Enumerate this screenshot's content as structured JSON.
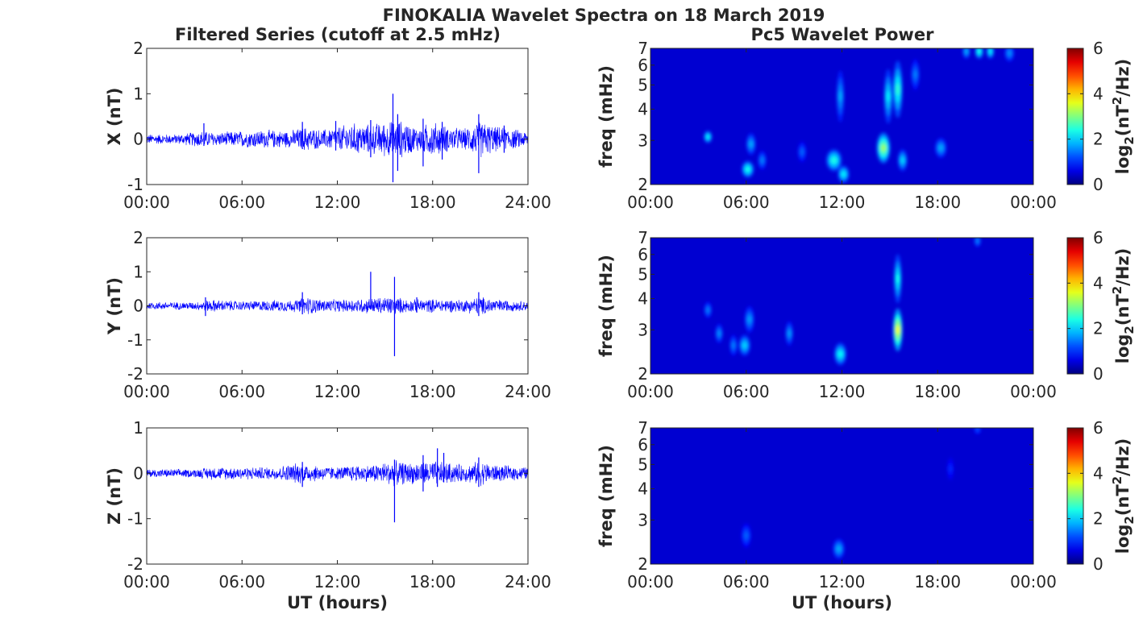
{
  "chart_data": {
    "title": "FINOKALIA Wavelet Spectra on 18 March 2019",
    "left_column_title": "Filtered Series (cutoff at 2.5 mHz)",
    "right_column_title": "Pc5 Wavelet Power",
    "colors": {
      "trace": "#0000ff",
      "axis": "#262626",
      "colormap": "jet"
    },
    "time_series": [
      {
        "type": "line",
        "component": "X",
        "ylabel": "X (nT)",
        "ylim": [
          -1,
          2
        ],
        "yticks": [
          "-1",
          "0",
          "1",
          "2"
        ],
        "xlim": [
          0,
          24
        ],
        "xticks": [
          "00:00",
          "06:00",
          "12:00",
          "18:00",
          "24:00"
        ],
        "envelope": [
          [
            0,
            0.12
          ],
          [
            2,
            0.12
          ],
          [
            3.5,
            0.2
          ],
          [
            4.5,
            0.16
          ],
          [
            6,
            0.2
          ],
          [
            7.5,
            0.22
          ],
          [
            9,
            0.2
          ],
          [
            10,
            0.3
          ],
          [
            11,
            0.22
          ],
          [
            12,
            0.3
          ],
          [
            13,
            0.38
          ],
          [
            14,
            0.35
          ],
          [
            15,
            0.42
          ],
          [
            16,
            0.45
          ],
          [
            17,
            0.3
          ],
          [
            18,
            0.42
          ],
          [
            19,
            0.3
          ],
          [
            20,
            0.25
          ],
          [
            21,
            0.45
          ],
          [
            22,
            0.3
          ],
          [
            23,
            0.25
          ],
          [
            24,
            0.18
          ]
        ],
        "spikes": [
          {
            "t": 3.6,
            "ymin": -0.15,
            "ymax": 0.35
          },
          {
            "t": 9.8,
            "ymin": -0.22,
            "ymax": 0.38
          },
          {
            "t": 11.9,
            "ymin": -0.25,
            "ymax": 0.4
          },
          {
            "t": 14.1,
            "ymin": -0.4,
            "ymax": 0.42
          },
          {
            "t": 15.5,
            "ymin": -0.95,
            "ymax": 1.0
          },
          {
            "t": 15.8,
            "ymin": -0.7,
            "ymax": 0.55
          },
          {
            "t": 17.4,
            "ymin": -0.6,
            "ymax": 0.45
          },
          {
            "t": 18.6,
            "ymin": -0.45,
            "ymax": 0.38
          },
          {
            "t": 20.9,
            "ymin": -0.75,
            "ymax": 0.55
          },
          {
            "t": 22.5,
            "ymin": -0.3,
            "ymax": 0.3
          }
        ]
      },
      {
        "type": "line",
        "component": "Y",
        "ylabel": "Y (nT)",
        "ylim": [
          -2,
          2
        ],
        "yticks": [
          "-2",
          "-1",
          "0",
          "1",
          "2"
        ],
        "xlim": [
          0,
          24
        ],
        "xticks": [
          "00:00",
          "06:00",
          "12:00",
          "18:00",
          "24:00"
        ],
        "envelope": [
          [
            0,
            0.12
          ],
          [
            3,
            0.12
          ],
          [
            4,
            0.2
          ],
          [
            6,
            0.15
          ],
          [
            8,
            0.18
          ],
          [
            9.5,
            0.2
          ],
          [
            10,
            0.3
          ],
          [
            11,
            0.2
          ],
          [
            12.5,
            0.2
          ],
          [
            14,
            0.25
          ],
          [
            15.5,
            0.3
          ],
          [
            16.5,
            0.2
          ],
          [
            18,
            0.22
          ],
          [
            20,
            0.2
          ],
          [
            21,
            0.3
          ],
          [
            22,
            0.2
          ],
          [
            24,
            0.15
          ]
        ],
        "spikes": [
          {
            "t": 3.7,
            "ymin": -0.3,
            "ymax": 0.25
          },
          {
            "t": 9.8,
            "ymin": -0.25,
            "ymax": 0.4
          },
          {
            "t": 14.1,
            "ymin": -0.1,
            "ymax": 1.0
          },
          {
            "t": 15.6,
            "ymin": -1.48,
            "ymax": 0.85
          },
          {
            "t": 17.0,
            "ymin": -0.2,
            "ymax": 0.25
          },
          {
            "t": 20.9,
            "ymin": -0.3,
            "ymax": 0.4
          }
        ]
      },
      {
        "type": "line",
        "component": "Z",
        "ylabel": "Z (nT)",
        "ylim": [
          -2,
          1
        ],
        "yticks": [
          "-2",
          "-1",
          "0",
          "1"
        ],
        "xlim": [
          0,
          24
        ],
        "xticks": [
          "00:00",
          "06:00",
          "12:00",
          "18:00",
          "24:00"
        ],
        "xlabel": "UT (hours)",
        "envelope": [
          [
            0,
            0.1
          ],
          [
            3,
            0.1
          ],
          [
            4,
            0.15
          ],
          [
            6,
            0.15
          ],
          [
            8,
            0.15
          ],
          [
            9.5,
            0.25
          ],
          [
            11,
            0.18
          ],
          [
            12,
            0.15
          ],
          [
            13,
            0.2
          ],
          [
            14,
            0.2
          ],
          [
            15.5,
            0.3
          ],
          [
            16.5,
            0.25
          ],
          [
            18,
            0.3
          ],
          [
            19,
            0.25
          ],
          [
            20,
            0.2
          ],
          [
            21,
            0.3
          ],
          [
            22,
            0.2
          ],
          [
            24,
            0.15
          ]
        ],
        "spikes": [
          {
            "t": 9.8,
            "ymin": -0.3,
            "ymax": 0.25
          },
          {
            "t": 15.6,
            "ymin": -1.08,
            "ymax": 0.3
          },
          {
            "t": 17.4,
            "ymin": -0.4,
            "ymax": 0.4
          },
          {
            "t": 18.3,
            "ymin": -0.3,
            "ymax": 0.55
          },
          {
            "t": 18.7,
            "ymin": -0.2,
            "ymax": 0.45
          },
          {
            "t": 20.9,
            "ymin": -0.3,
            "ymax": 0.35
          }
        ]
      }
    ],
    "spectrograms": [
      {
        "type": "heatmap",
        "component": "X",
        "ylabel": "freq (mHz)",
        "yscale": "log",
        "ylim": [
          2,
          7
        ],
        "yticks": [
          "2",
          "3",
          "4",
          "5",
          "6",
          "7"
        ],
        "xlim": [
          0,
          24
        ],
        "xticks": [
          "00:00",
          "06:00",
          "12:00",
          "18:00",
          "00:00"
        ],
        "colorbar": {
          "label": "log2(nT²/Hz)",
          "range": [
            0,
            6
          ],
          "ticks": [
            "0",
            "2",
            "4",
            "6"
          ]
        },
        "blobs": [
          {
            "t": 3.6,
            "f": 3.1,
            "dt": 0.12,
            "df": 0.18,
            "v": 2.0
          },
          {
            "t": 6.1,
            "f": 2.3,
            "dt": 0.22,
            "df": 0.2,
            "v": 2.2
          },
          {
            "t": 6.3,
            "f": 2.9,
            "dt": 0.15,
            "df": 0.35,
            "v": 1.5
          },
          {
            "t": 7.0,
            "f": 2.5,
            "dt": 0.12,
            "df": 0.25,
            "v": 1.2
          },
          {
            "t": 11.5,
            "f": 2.5,
            "dt": 0.3,
            "df": 0.3,
            "v": 2.3
          },
          {
            "t": 12.1,
            "f": 2.2,
            "dt": 0.2,
            "df": 0.2,
            "v": 2.0
          },
          {
            "t": 11.9,
            "f": 4.5,
            "dt": 0.1,
            "df": 1.5,
            "v": 1.5
          },
          {
            "t": 14.6,
            "f": 2.8,
            "dt": 0.25,
            "df": 0.5,
            "v": 3.2
          },
          {
            "t": 14.9,
            "f": 4.5,
            "dt": 0.12,
            "df": 1.6,
            "v": 2.0
          },
          {
            "t": 15.5,
            "f": 4.8,
            "dt": 0.15,
            "df": 1.8,
            "v": 2.4
          },
          {
            "t": 15.8,
            "f": 2.5,
            "dt": 0.15,
            "df": 0.3,
            "v": 1.8
          },
          {
            "t": 16.6,
            "f": 5.5,
            "dt": 0.12,
            "df": 1.0,
            "v": 1.2
          },
          {
            "t": 18.2,
            "f": 2.8,
            "dt": 0.2,
            "df": 0.3,
            "v": 1.5
          },
          {
            "t": 19.8,
            "f": 6.8,
            "dt": 0.1,
            "df": 0.5,
            "v": 1.5
          },
          {
            "t": 20.6,
            "f": 6.8,
            "dt": 0.12,
            "df": 0.5,
            "v": 2.2
          },
          {
            "t": 21.3,
            "f": 6.8,
            "dt": 0.1,
            "df": 0.5,
            "v": 2.0
          },
          {
            "t": 22.5,
            "f": 6.7,
            "dt": 0.15,
            "df": 0.6,
            "v": 1.3
          },
          {
            "t": 9.5,
            "f": 2.7,
            "dt": 0.12,
            "df": 0.3,
            "v": 1.0
          }
        ]
      },
      {
        "type": "heatmap",
        "component": "Y",
        "ylabel": "freq (mHz)",
        "yscale": "log",
        "ylim": [
          2,
          7
        ],
        "yticks": [
          "2",
          "3",
          "4",
          "5",
          "6",
          "7"
        ],
        "xlim": [
          0,
          24
        ],
        "xticks": [
          "00:00",
          "06:00",
          "12:00",
          "18:00",
          "00:00"
        ],
        "colorbar": {
          "label": "log2(nT²/Hz)",
          "range": [
            0,
            6
          ],
          "ticks": [
            "0",
            "2",
            "4",
            "6"
          ]
        },
        "blobs": [
          {
            "t": 3.6,
            "f": 3.6,
            "dt": 0.1,
            "df": 0.3,
            "v": 1.2
          },
          {
            "t": 4.3,
            "f": 2.9,
            "dt": 0.1,
            "df": 0.3,
            "v": 1.3
          },
          {
            "t": 5.2,
            "f": 2.6,
            "dt": 0.1,
            "df": 0.3,
            "v": 1.2
          },
          {
            "t": 5.9,
            "f": 2.6,
            "dt": 0.2,
            "df": 0.3,
            "v": 1.8
          },
          {
            "t": 6.2,
            "f": 3.3,
            "dt": 0.15,
            "df": 0.5,
            "v": 1.4
          },
          {
            "t": 8.7,
            "f": 2.9,
            "dt": 0.1,
            "df": 0.4,
            "v": 1.4
          },
          {
            "t": 11.9,
            "f": 2.4,
            "dt": 0.22,
            "df": 0.3,
            "v": 2.1
          },
          {
            "t": 15.5,
            "f": 3.0,
            "dt": 0.15,
            "df": 0.8,
            "v": 3.8
          },
          {
            "t": 15.5,
            "f": 4.8,
            "dt": 0.1,
            "df": 1.5,
            "v": 2.2
          },
          {
            "t": 20.5,
            "f": 6.8,
            "dt": 0.08,
            "df": 0.4,
            "v": 1.2
          }
        ]
      },
      {
        "type": "heatmap",
        "component": "Z",
        "ylabel": "freq (mHz)",
        "yscale": "log",
        "ylim": [
          2,
          7
        ],
        "yticks": [
          "2",
          "3",
          "4",
          "5",
          "6",
          "7"
        ],
        "xlim": [
          0,
          24
        ],
        "xticks": [
          "00:00",
          "06:00",
          "12:00",
          "18:00",
          "00:00"
        ],
        "xlabel": "UT (hours)",
        "colorbar": {
          "label": "log2(nT²/Hz)",
          "range": [
            0,
            6
          ],
          "ticks": [
            "0",
            "2",
            "4",
            "6"
          ]
        },
        "blobs": [
          {
            "t": 6.0,
            "f": 2.6,
            "dt": 0.15,
            "df": 0.35,
            "v": 1.0
          },
          {
            "t": 11.8,
            "f": 2.3,
            "dt": 0.2,
            "df": 0.25,
            "v": 1.5
          },
          {
            "t": 18.8,
            "f": 4.8,
            "dt": 0.08,
            "df": 0.6,
            "v": 0.6
          },
          {
            "t": 20.5,
            "f": 6.9,
            "dt": 0.08,
            "df": 0.3,
            "v": 0.8
          }
        ]
      }
    ]
  }
}
